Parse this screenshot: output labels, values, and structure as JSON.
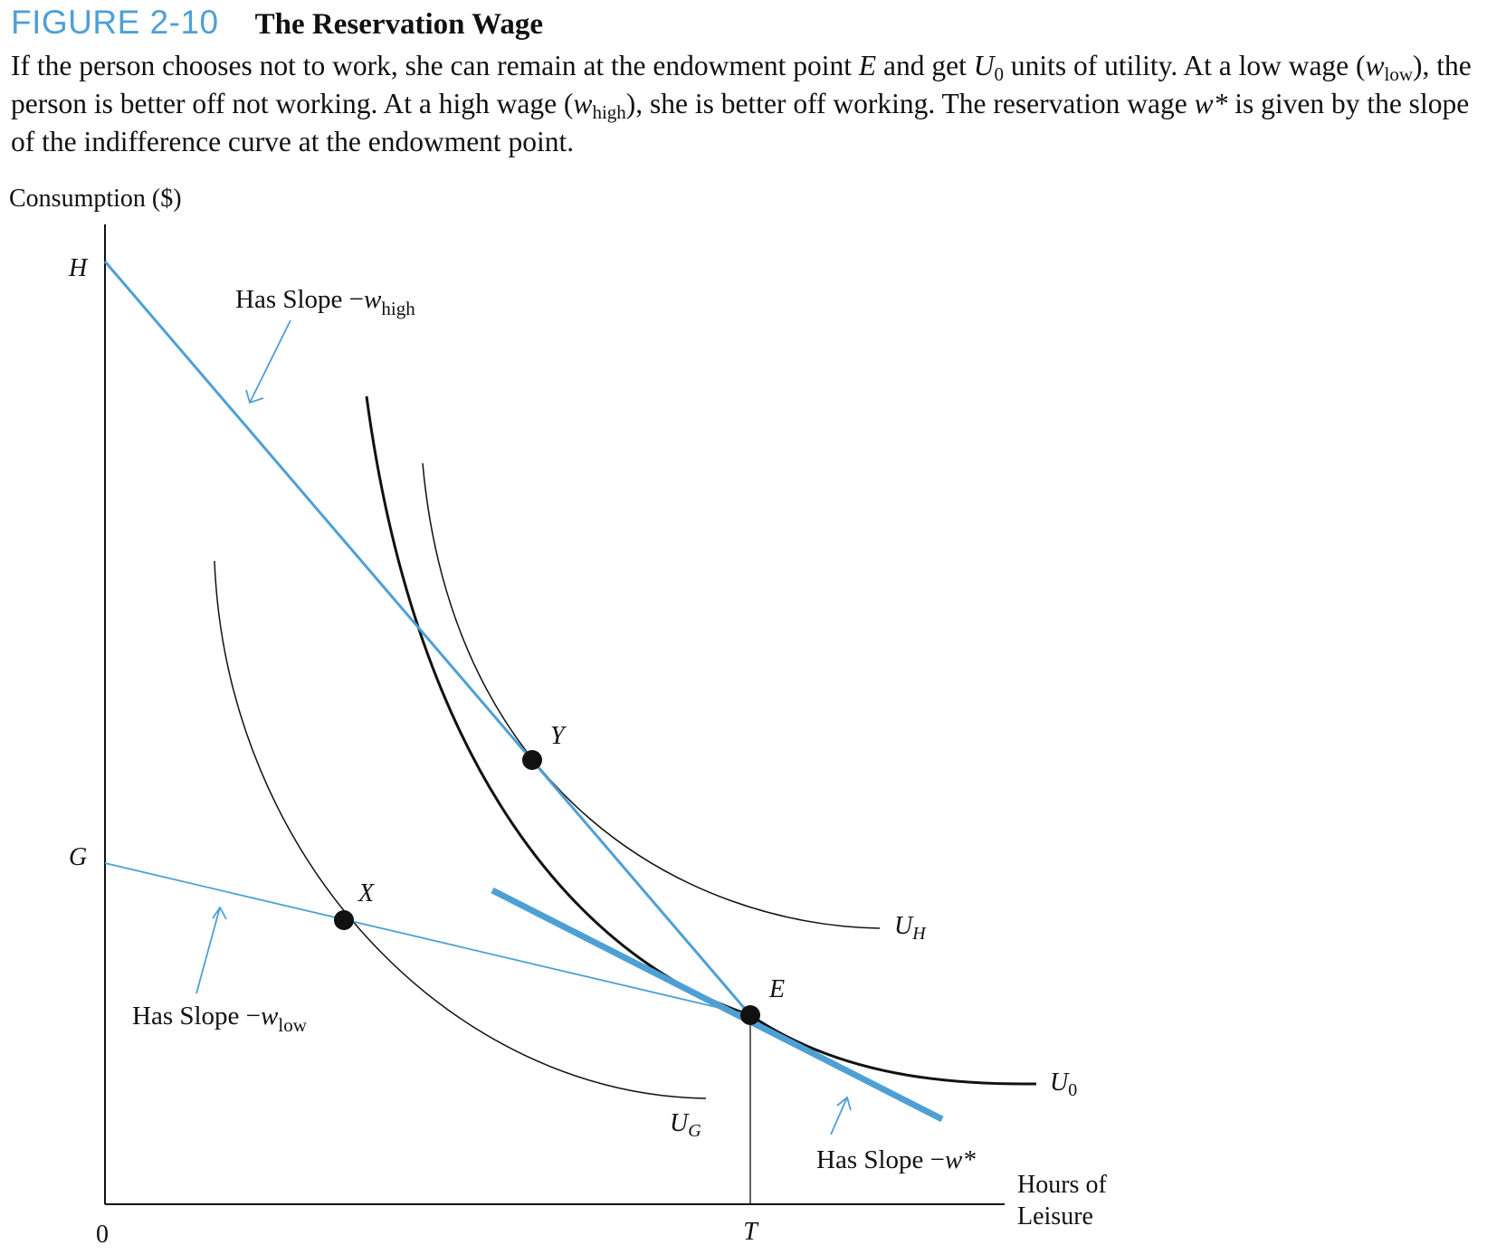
{
  "figure": {
    "number": "FIGURE 2-10",
    "title": "The Reservation Wage",
    "caption": {
      "t1": "If the person chooses not to work, she can remain at the endowment point ",
      "E": "E",
      "t2": " and get ",
      "U": "U",
      "sub0": "0",
      "t3": " units of utility. At a low wage (",
      "w": "w",
      "low": "low",
      "t4": "), the person is better off not working. At a high wage (",
      "high": "high",
      "t5": "), she is better off working. The reservation wage ",
      "wstar": "w*",
      "t6": " is given by the slope of the indifference curve at the endowment point."
    }
  },
  "diagram": {
    "y_axis_label": "Consumption ($)",
    "x_axis_label_line1": "Hours of",
    "x_axis_label_line2": "Leisure",
    "origin_label": "0",
    "t_label": "T",
    "h_label": "H",
    "g_label": "G",
    "points": {
      "E": "E",
      "X": "X",
      "Y": "Y"
    },
    "curves": {
      "U0": {
        "main": "U",
        "sub": "0"
      },
      "UG": {
        "main": "U",
        "sub": "G"
      },
      "UH": {
        "main": "U",
        "sub": "H"
      }
    },
    "annotations": {
      "high": {
        "text": "Has Slope −",
        "w": "w",
        "sub": "high"
      },
      "low": {
        "text": "Has Slope −",
        "w": "w",
        "sub": "low"
      },
      "star": {
        "text": "Has Slope −",
        "w": "w*"
      }
    },
    "colors": {
      "budget_line": "#4ea0d4",
      "curve": "#111111",
      "accent_title": "#4ea0d4"
    }
  }
}
